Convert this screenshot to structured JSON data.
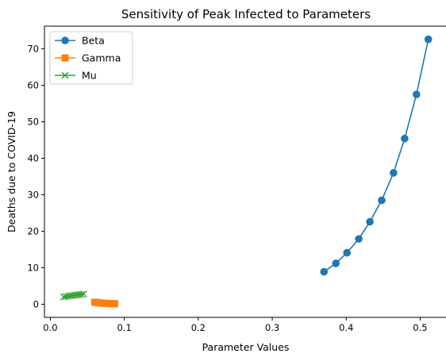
{
  "chart_data": {
    "type": "line",
    "title": "Sensitivity of Peak Infected to Parameters",
    "xlabel": "Parameter Values",
    "ylabel": "Deaths due to COVID-19",
    "xlim": [
      -0.008,
      0.536
    ],
    "ylim": [
      -3.6,
      76.2
    ],
    "xticks": [
      0.0,
      0.1,
      0.2,
      0.3,
      0.4,
      0.5
    ],
    "xtick_labels": [
      "0.0",
      "0.1",
      "0.2",
      "0.3",
      "0.4",
      "0.5"
    ],
    "yticks": [
      0,
      10,
      20,
      30,
      40,
      50,
      60,
      70
    ],
    "ytick_labels": [
      "0",
      "10",
      "20",
      "30",
      "40",
      "50",
      "60",
      "70"
    ],
    "grid": false,
    "legend_position": "top-left",
    "series": [
      {
        "name": "Beta",
        "color": "#1f77b4",
        "marker": "circle",
        "x": [
          0.37,
          0.386,
          0.401,
          0.417,
          0.432,
          0.448,
          0.464,
          0.479,
          0.495,
          0.511
        ],
        "y": [
          8.9,
          11.2,
          14.1,
          17.9,
          22.6,
          28.5,
          36.0,
          45.4,
          57.5,
          72.6
        ]
      },
      {
        "name": "Gamma",
        "color": "#ff7f0e",
        "marker": "square",
        "x": [
          0.06,
          0.063,
          0.066,
          0.069,
          0.072,
          0.075,
          0.078,
          0.081,
          0.084,
          0.087
        ],
        "y": [
          0.55,
          0.45,
          0.38,
          0.32,
          0.27,
          0.23,
          0.2,
          0.17,
          0.15,
          0.13
        ]
      },
      {
        "name": "Mu",
        "color": "#2ca02c",
        "marker": "x",
        "x": [
          0.018,
          0.021,
          0.024,
          0.027,
          0.03,
          0.033,
          0.036,
          0.039,
          0.042,
          0.045
        ],
        "y": [
          2.0,
          2.1,
          2.2,
          2.3,
          2.4,
          2.5,
          2.55,
          2.6,
          2.7,
          2.8
        ]
      }
    ]
  }
}
